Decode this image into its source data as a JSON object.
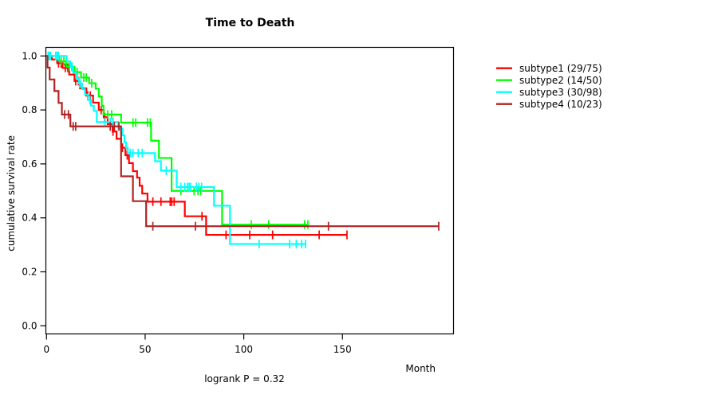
{
  "chart_data": {
    "type": "line",
    "chart_kind": "kaplan_meier_survival_step",
    "title": "Time to Death",
    "xlabel": "Month",
    "ylabel": "cumulative survival rate",
    "footnote": "logrank P = 0.32",
    "xlim": [
      0,
      206
    ],
    "ylim": [
      0,
      1
    ],
    "x_ticks": [
      0,
      50,
      100,
      150
    ],
    "y_ticks": [
      1.0,
      0.8,
      0.6,
      0.4,
      0.2,
      0.0
    ],
    "grid": false,
    "legend_position": "right",
    "series": [
      {
        "name": "subtype1",
        "label": "subtype1 (29/75)",
        "color": "#FF0000",
        "steps": [
          [
            0,
            1.0
          ],
          [
            2.7,
            0.987
          ],
          [
            5.4,
            0.973
          ],
          [
            8.1,
            0.956
          ],
          [
            11.5,
            0.931
          ],
          [
            14.2,
            0.907
          ],
          [
            17,
            0.88
          ],
          [
            20.2,
            0.853
          ],
          [
            23.6,
            0.827
          ],
          [
            26.5,
            0.8
          ],
          [
            29,
            0.773
          ],
          [
            31,
            0.747
          ],
          [
            33.5,
            0.72
          ],
          [
            35.5,
            0.693
          ],
          [
            37.8,
            0.66
          ],
          [
            40,
            0.632
          ],
          [
            41.8,
            0.603
          ],
          [
            43.8,
            0.573
          ],
          [
            45.9,
            0.549
          ],
          [
            47.2,
            0.519
          ],
          [
            48.5,
            0.49
          ],
          [
            51.2,
            0.46
          ],
          [
            70.1,
            0.406
          ],
          [
            80.9,
            0.337
          ]
        ],
        "end": 152.3,
        "censor_months": [
          6.1,
          7.4,
          9.5,
          10.8,
          14.8,
          16.2,
          20.9,
          22.2,
          27.7,
          29.5,
          33.7,
          38.5,
          40.9,
          53.9,
          58,
          62.7,
          63.5,
          64.7,
          78.8,
          91,
          103,
          114.6,
          138.2,
          152.3
        ]
      },
      {
        "name": "subtype2",
        "label": "subtype2 (14/50)",
        "color": "#00FF00",
        "steps": [
          [
            0,
            1.0
          ],
          [
            6.3,
            0.98
          ],
          [
            10.1,
            0.96
          ],
          [
            14.2,
            0.94
          ],
          [
            17.5,
            0.92
          ],
          [
            21.6,
            0.899
          ],
          [
            24.9,
            0.879
          ],
          [
            26.5,
            0.85
          ],
          [
            28,
            0.815
          ],
          [
            28.9,
            0.783
          ],
          [
            37.8,
            0.753
          ],
          [
            53,
            0.686
          ],
          [
            57,
            0.622
          ],
          [
            63.4,
            0.5
          ],
          [
            89,
            0.375
          ]
        ],
        "end": 132.5,
        "censor_months": [
          7.4,
          8.8,
          11.5,
          12.8,
          15.5,
          18.9,
          20.2,
          22.9,
          31,
          33,
          43.8,
          45.2,
          51.2,
          52.6,
          68.1,
          74.8,
          76.8,
          78.2,
          103.8,
          112.6,
          130.8,
          132.5
        ]
      },
      {
        "name": "subtype3",
        "label": "subtype3 (30/98)",
        "color": "#00FFFF",
        "steps": [
          [
            0,
            1.0
          ],
          [
            10.2,
            0.98
          ],
          [
            12,
            0.959
          ],
          [
            13.5,
            0.938
          ],
          [
            15,
            0.918
          ],
          [
            16.5,
            0.898
          ],
          [
            18,
            0.877
          ],
          [
            19.5,
            0.857
          ],
          [
            21,
            0.837
          ],
          [
            22.5,
            0.816
          ],
          [
            24,
            0.796
          ],
          [
            25.5,
            0.755
          ],
          [
            36.4,
            0.731
          ],
          [
            38.4,
            0.706
          ],
          [
            39.5,
            0.68
          ],
          [
            40.3,
            0.66
          ],
          [
            41.2,
            0.64
          ],
          [
            55,
            0.61
          ],
          [
            58,
            0.575
          ],
          [
            66,
            0.514
          ],
          [
            84.9,
            0.445
          ],
          [
            93,
            0.303
          ]
        ],
        "end": 131.3,
        "censor_months": [
          0.8,
          1.4,
          2,
          4.7,
          5.4,
          6,
          13,
          17,
          22,
          29.7,
          32.3,
          33.7,
          42.5,
          43.8,
          46.5,
          48.5,
          60.7,
          68.1,
          70.1,
          71.5,
          72.3,
          73.1,
          76,
          77.3,
          78.6,
          107.8,
          123.2,
          126.6,
          129.3,
          131.3
        ]
      },
      {
        "name": "subtype4",
        "label": "subtype4 (10/23)",
        "color": "#B22222",
        "steps": [
          [
            0,
            1.0
          ],
          [
            0.5,
            0.957
          ],
          [
            1.6,
            0.913
          ],
          [
            4,
            0.87
          ],
          [
            6.1,
            0.826
          ],
          [
            7.8,
            0.783
          ],
          [
            12.1,
            0.739
          ],
          [
            37.8,
            0.554
          ],
          [
            43.8,
            0.462
          ],
          [
            50.5,
            0.369
          ]
        ],
        "end": 198.8,
        "censor_months": [
          9.2,
          11.1,
          13.5,
          14.8,
          32.3,
          34.4,
          36.7,
          53.9,
          75.5,
          142.9,
          198.8
        ]
      }
    ]
  }
}
